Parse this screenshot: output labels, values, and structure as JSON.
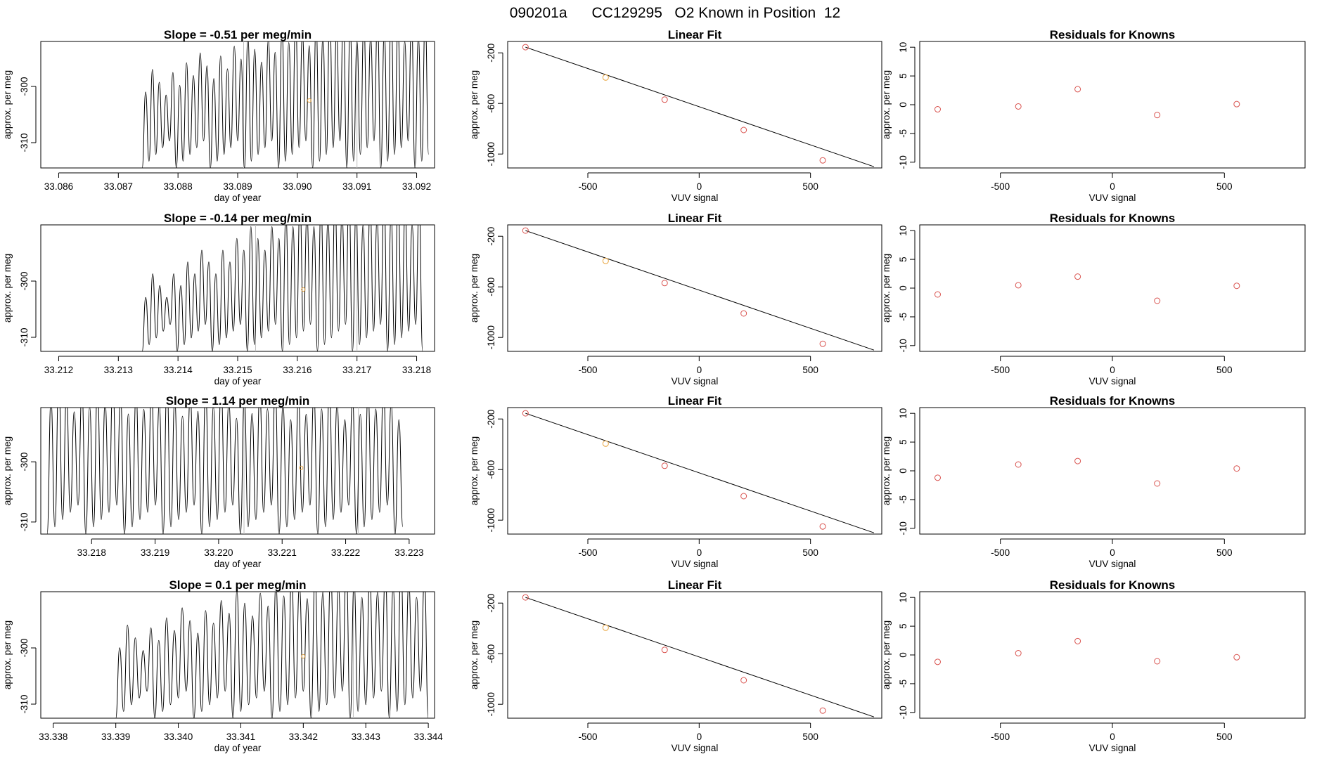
{
  "figure": {
    "main_title": "090201a      CC129295   O2 Known in Position  12"
  },
  "chart_data": [
    {
      "type": "line",
      "panel": "timeseries",
      "row": 0,
      "title": "Slope =  -0.51  per meg/min",
      "xlabel": "day of year",
      "ylabel": "approx. per meg",
      "xlim": [
        33.0857,
        33.0923
      ],
      "ylim": [
        -314.5,
        -292
      ],
      "xticks": [
        33.086,
        33.087,
        33.088,
        33.089,
        33.09,
        33.091,
        33.092
      ],
      "xtick_labels": [
        "33.086",
        "33.087",
        "33.088",
        "33.089",
        "33.090",
        "33.091",
        "33.092"
      ],
      "yticks": [
        -300,
        -310
      ],
      "ytick_labels": [
        "-300",
        "-310"
      ],
      "trace": {
        "start": 33.0874,
        "end": 33.0922,
        "cycles": 42,
        "low": -314.5,
        "high_start": -303,
        "high_end": -292
      },
      "gray_lines": [
        33.0891,
        33.091
      ],
      "marker": {
        "x": 33.0902,
        "y": -302.5,
        "color": "#e8a33c"
      }
    },
    {
      "type": "scatter",
      "panel": "linear_fit",
      "row": 0,
      "title": "Linear Fit",
      "xlabel": "VUV signal",
      "ylabel": "approx. per meg",
      "xlim": [
        -860,
        820
      ],
      "ylim": [
        -1110,
        -110
      ],
      "xticks": [
        -500,
        0,
        500
      ],
      "xtick_labels": [
        "-500",
        "0",
        "500"
      ],
      "yticks": [
        -200,
        -600,
        -1000
      ],
      "ytick_labels": [
        "-200",
        "-600",
        "-1000"
      ],
      "x": [
        -780,
        -420,
        -155,
        200,
        555
      ],
      "y": [
        -155,
        -395,
        -570,
        -810,
        -1050
      ],
      "point_colors": [
        "#d9534f",
        "#e8a33c",
        "#d9534f",
        "#d9534f",
        "#d9534f"
      ],
      "fit": {
        "x0": -780,
        "y0": -155,
        "x1": 785,
        "y1": -1100
      }
    },
    {
      "type": "scatter",
      "panel": "residuals",
      "row": 0,
      "title": "Residuals for Knowns",
      "xlabel": "VUV signal",
      "ylabel": "approx. per meg",
      "xlim": [
        -860,
        860
      ],
      "ylim": [
        -11,
        11
      ],
      "xticks": [
        -500,
        0,
        500
      ],
      "xtick_labels": [
        "-500",
        "0",
        "500"
      ],
      "yticks": [
        10,
        5,
        0,
        -5,
        -10
      ],
      "ytick_labels": [
        "10",
        "5",
        "0",
        "-5",
        "-10"
      ],
      "x": [
        -780,
        -420,
        -155,
        200,
        555
      ],
      "y": [
        -0.8,
        -0.3,
        2.7,
        -1.8,
        0.1
      ]
    },
    {
      "type": "line",
      "panel": "timeseries",
      "row": 1,
      "title": "Slope =  -0.14  per meg/min",
      "xlabel": "day of year",
      "ylabel": "approx. per meg",
      "xlim": [
        33.2117,
        33.2183
      ],
      "ylim": [
        -312.5,
        -290
      ],
      "xticks": [
        33.212,
        33.213,
        33.214,
        33.215,
        33.216,
        33.217,
        33.218
      ],
      "xtick_labels": [
        "33.212",
        "33.213",
        "33.214",
        "33.215",
        "33.216",
        "33.217",
        "33.218"
      ],
      "yticks": [
        -300,
        -310
      ],
      "ytick_labels": [
        "-300",
        "-310"
      ],
      "trace": {
        "start": 33.2134,
        "end": 33.2181,
        "cycles": 40,
        "low": -312.5,
        "high_start": -305,
        "high_end": -290
      },
      "gray_lines": [
        33.2153,
        33.217
      ],
      "marker": {
        "x": 33.2161,
        "y": -301.5,
        "color": "#e8a33c"
      }
    },
    {
      "type": "scatter",
      "panel": "linear_fit",
      "row": 1,
      "title": "Linear Fit",
      "xlabel": "VUV signal",
      "ylabel": "approx. per meg",
      "xlim": [
        -860,
        820
      ],
      "ylim": [
        -1110,
        -110
      ],
      "xticks": [
        -500,
        0,
        500
      ],
      "xtick_labels": [
        "-500",
        "0",
        "500"
      ],
      "yticks": [
        -200,
        -600,
        -1000
      ],
      "ytick_labels": [
        "-200",
        "-600",
        "-1000"
      ],
      "x": [
        -780,
        -420,
        -155,
        200,
        555
      ],
      "y": [
        -155,
        -395,
        -570,
        -810,
        -1050
      ],
      "point_colors": [
        "#d9534f",
        "#e8a33c",
        "#d9534f",
        "#d9534f",
        "#d9534f"
      ],
      "fit": {
        "x0": -780,
        "y0": -155,
        "x1": 785,
        "y1": -1100
      }
    },
    {
      "type": "scatter",
      "panel": "residuals",
      "row": 1,
      "title": "Residuals for Knowns",
      "xlabel": "VUV signal",
      "ylabel": "approx. per meg",
      "xlim": [
        -860,
        860
      ],
      "ylim": [
        -11,
        11
      ],
      "xticks": [
        -500,
        0,
        500
      ],
      "xtick_labels": [
        "-500",
        "0",
        "500"
      ],
      "yticks": [
        10,
        5,
        0,
        -5,
        -10
      ],
      "ytick_labels": [
        "10",
        "5",
        "0",
        "-5",
        "-10"
      ],
      "x": [
        -780,
        -420,
        -155,
        200,
        555
      ],
      "y": [
        -1.1,
        0.5,
        2.0,
        -2.2,
        0.4
      ]
    },
    {
      "type": "line",
      "panel": "timeseries",
      "row": 2,
      "title": "Slope =  1.14  per meg/min",
      "xlabel": "day of year",
      "ylabel": "approx. per meg",
      "xlim": [
        33.2172,
        33.2234
      ],
      "ylim": [
        -312,
        -291
      ],
      "xticks": [
        33.218,
        33.219,
        33.22,
        33.221,
        33.222,
        33.223
      ],
      "xtick_labels": [
        "33.218",
        "33.219",
        "33.220",
        "33.221",
        "33.222",
        "33.223"
      ],
      "yticks": [
        -300,
        -310
      ],
      "ytick_labels": [
        "-300",
        "-310"
      ],
      "trace": {
        "start": 33.2173,
        "end": 33.2229,
        "cycles": 46,
        "low": -312,
        "high_start": -291.5,
        "high_end": -293
      },
      "gray_lines": [
        33.2204,
        33.2222
      ],
      "marker": {
        "x": 33.2213,
        "y": -301,
        "color": "#e8a33c"
      }
    },
    {
      "type": "scatter",
      "panel": "linear_fit",
      "row": 2,
      "title": "Linear Fit",
      "xlabel": "VUV signal",
      "ylabel": "approx. per meg",
      "xlim": [
        -860,
        820
      ],
      "ylim": [
        -1110,
        -110
      ],
      "xticks": [
        -500,
        0,
        500
      ],
      "xtick_labels": [
        "-500",
        "0",
        "500"
      ],
      "yticks": [
        -200,
        -600,
        -1000
      ],
      "ytick_labels": [
        "-200",
        "-600",
        "-1000"
      ],
      "x": [
        -780,
        -420,
        -155,
        200,
        555
      ],
      "y": [
        -155,
        -395,
        -570,
        -810,
        -1050
      ],
      "point_colors": [
        "#d9534f",
        "#e8a33c",
        "#d9534f",
        "#d9534f",
        "#d9534f"
      ],
      "fit": {
        "x0": -780,
        "y0": -155,
        "x1": 785,
        "y1": -1100
      }
    },
    {
      "type": "scatter",
      "panel": "residuals",
      "row": 2,
      "title": "Residuals for Knowns",
      "xlabel": "VUV signal",
      "ylabel": "approx. per meg",
      "xlim": [
        -860,
        860
      ],
      "ylim": [
        -11,
        11
      ],
      "xticks": [
        -500,
        0,
        500
      ],
      "xtick_labels": [
        "-500",
        "0",
        "500"
      ],
      "yticks": [
        10,
        5,
        0,
        -5,
        -10
      ],
      "ytick_labels": [
        "10",
        "5",
        "0",
        "-5",
        "-10"
      ],
      "x": [
        -780,
        -420,
        -155,
        200,
        555
      ],
      "y": [
        -1.2,
        1.1,
        1.7,
        -2.2,
        0.4
      ]
    },
    {
      "type": "line",
      "panel": "timeseries",
      "row": 3,
      "title": "Slope =  0.1  per meg/min",
      "xlabel": "day of year",
      "ylabel": "approx. per meg",
      "xlim": [
        33.3378,
        33.3441
      ],
      "ylim": [
        -312.5,
        -290
      ],
      "xticks": [
        33.338,
        33.339,
        33.34,
        33.341,
        33.342,
        33.343,
        33.344
      ],
      "xtick_labels": [
        "33.338",
        "33.339",
        "33.340",
        "33.341",
        "33.342",
        "33.343",
        "33.344"
      ],
      "yticks": [
        -300,
        -310
      ],
      "ytick_labels": [
        "-300",
        "-310"
      ],
      "trace": {
        "start": 33.339,
        "end": 33.344,
        "cycles": 40,
        "low": -312.5,
        "high_start": -302,
        "high_end": -291
      },
      "gray_lines": [
        33.3428
      ],
      "marker": {
        "x": 33.342,
        "y": -301.5,
        "color": "#e8a33c"
      }
    },
    {
      "type": "scatter",
      "panel": "linear_fit",
      "row": 3,
      "title": "Linear Fit",
      "xlabel": "VUV signal",
      "ylabel": "approx. per meg",
      "xlim": [
        -860,
        820
      ],
      "ylim": [
        -1110,
        -110
      ],
      "xticks": [
        -500,
        0,
        500
      ],
      "xtick_labels": [
        "-500",
        "0",
        "500"
      ],
      "yticks": [
        -200,
        -600,
        -1000
      ],
      "ytick_labels": [
        "-200",
        "-600",
        "-1000"
      ],
      "x": [
        -780,
        -420,
        -155,
        200,
        555
      ],
      "y": [
        -155,
        -395,
        -570,
        -810,
        -1050
      ],
      "point_colors": [
        "#d9534f",
        "#e8a33c",
        "#d9534f",
        "#d9534f",
        "#d9534f"
      ],
      "fit": {
        "x0": -780,
        "y0": -155,
        "x1": 785,
        "y1": -1100
      }
    },
    {
      "type": "scatter",
      "panel": "residuals",
      "row": 3,
      "title": "Residuals for Knowns",
      "xlabel": "VUV signal",
      "ylabel": "approx. per meg",
      "xlim": [
        -860,
        860
      ],
      "ylim": [
        -11,
        11
      ],
      "xticks": [
        -500,
        0,
        500
      ],
      "xtick_labels": [
        "-500",
        "0",
        "500"
      ],
      "yticks": [
        10,
        5,
        0,
        -5,
        -10
      ],
      "ytick_labels": [
        "10",
        "5",
        "0",
        "-5",
        "-10"
      ],
      "x": [
        -780,
        -420,
        -155,
        200,
        555
      ],
      "y": [
        -1.2,
        0.3,
        2.4,
        -1.1,
        -0.4
      ]
    }
  ],
  "colors": {
    "point_red": "#d9534f",
    "point_orange": "#e8a33c",
    "gray_line": "#bdbdbd"
  }
}
